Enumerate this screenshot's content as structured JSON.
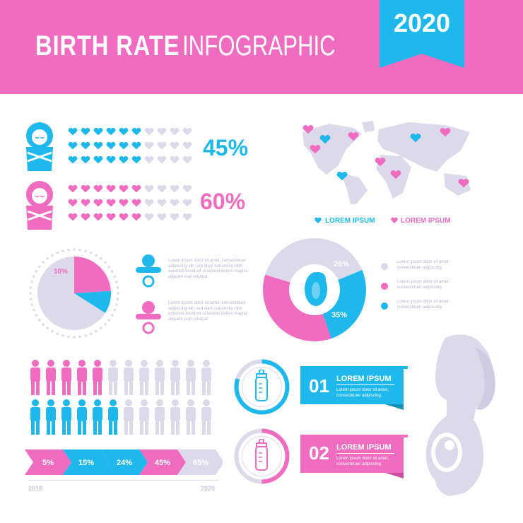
{
  "header": {
    "title_bold": "BIRTH RATE",
    "title_light": "INFOGRAPHIC",
    "year": "2020"
  },
  "colors": {
    "pink": "#ef6cc0",
    "blue": "#1eb8ec",
    "lavender": "#dcd9ea",
    "lavender_dark": "#c9c5dc"
  },
  "chart_data": [
    {
      "type": "pictograph",
      "title": "",
      "series": [
        {
          "name": "",
          "value_label": "45%",
          "value": 45,
          "color": "blue",
          "icon": "baby-boy-icon"
        },
        {
          "name": "",
          "value_label": "60%",
          "value": 60,
          "color": "pink",
          "icon": "baby-girl-icon"
        }
      ]
    },
    {
      "type": "pie",
      "labels": [
        "10%"
      ],
      "slices": [
        {
          "label": "10%",
          "value": 10,
          "color": "blue"
        },
        {
          "label": "",
          "value": 24,
          "color": "pink"
        },
        {
          "label": "",
          "value": 66,
          "color": "lavender"
        }
      ]
    },
    {
      "type": "donut",
      "slices": [
        {
          "label": "",
          "value": 39,
          "color": "lavender"
        },
        {
          "label": "26%",
          "value": 26,
          "color": "blue"
        },
        {
          "label": "35%",
          "value": 35,
          "color": "pink"
        }
      ]
    },
    {
      "type": "pictograph",
      "series": [
        {
          "name": "",
          "value": 5,
          "of": 12,
          "color": "pink"
        },
        {
          "name": "",
          "value": 6,
          "of": 12,
          "color": "blue"
        }
      ]
    },
    {
      "type": "timeline",
      "x_start": "2018",
      "x_end": "2020",
      "steps": [
        "5%",
        "15%",
        "24%",
        "45%",
        "65%"
      ]
    },
    {
      "type": "gauge",
      "items": [
        {
          "number": "01",
          "title": "LOREM IPSUM",
          "value": 80,
          "color": "blue"
        },
        {
          "number": "02",
          "title": "LOREM IPSUM",
          "value": 50,
          "color": "pink"
        }
      ]
    }
  ],
  "map_legend": [
    {
      "label": "LOREM IPSUM",
      "color": "blue"
    },
    {
      "label": "LOREM IPSUM",
      "color": "pink"
    }
  ],
  "text_blocks": {
    "pacifier_blue": "Lorem ipsum dolor sit amet, consectetuer adipiscing elit, sed diam nonummy nibh euismod tincidunt ut laoreet dolore magna aliquam erat volutpat.",
    "pacifier_pink": "Lorem ipsum dolor sit amet, consectetuer adipiscing elit, sed diam nonummy nibh euismod tincidunt ut laoreet dolore magna aliquam erat volutpat.",
    "donut_legend": [
      "Lorem ipsum dolor sit amet, consectetuer adipiscing.",
      "Lorem ipsum dolor sit amet, consectetuer adipiscing.",
      "Lorem ipsum dolor sit amet, consectetuer adipiscing."
    ],
    "box1": "Lorem ipsum dolor sit amet, consectetuer adipiscing.",
    "box2": "Lorem ipsum dolor sit amet, consectetuer adipiscing."
  }
}
